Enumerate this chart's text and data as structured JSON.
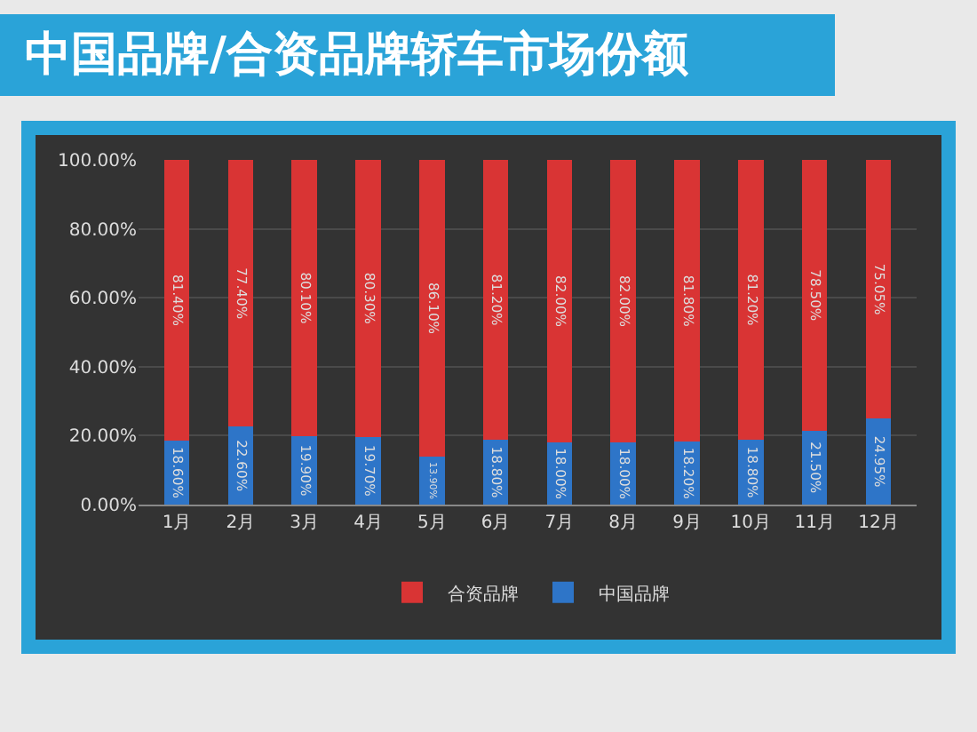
{
  "chart_data": {
    "type": "bar",
    "title": "中国品牌/合资品牌轿车市场份额",
    "stacked": true,
    "categories": [
      "1月",
      "2月",
      "3月",
      "4月",
      "5月",
      "6月",
      "7月",
      "8月",
      "9月",
      "10月",
      "11月",
      "12月"
    ],
    "series": [
      {
        "name": "中国品牌",
        "color": "#2e75c8",
        "values": [
          18.6,
          22.6,
          19.9,
          19.7,
          13.9,
          18.8,
          18.0,
          18.0,
          18.2,
          18.8,
          21.5,
          24.95
        ],
        "value_labels": [
          "18.60%",
          "22.60%",
          "19.90%",
          "19.70%",
          "13.90%",
          "18.80%",
          "18.00%",
          "18.00%",
          "18.20%",
          "18.80%",
          "21.50%",
          "24.95%"
        ]
      },
      {
        "name": "合资品牌",
        "color": "#d93434",
        "values": [
          81.4,
          77.4,
          80.1,
          80.3,
          86.1,
          81.2,
          82.0,
          82.0,
          81.8,
          81.2,
          78.5,
          75.05
        ],
        "value_labels": [
          "81.40%",
          "77.40%",
          "80.10%",
          "80.30%",
          "86.10%",
          "81.20%",
          "82.00%",
          "82.00%",
          "81.80%",
          "81.20%",
          "78.50%",
          "75.05%"
        ]
      }
    ],
    "ylim": [
      0,
      100
    ],
    "yticks": [
      {
        "value": 0,
        "label": "0.00%"
      },
      {
        "value": 20,
        "label": "20.00%"
      },
      {
        "value": 40,
        "label": "40.00%"
      },
      {
        "value": 60,
        "label": "60.00%"
      },
      {
        "value": 80,
        "label": "80.00%"
      },
      {
        "value": 100,
        "label": "100.00%"
      }
    ],
    "grid": "y",
    "legend": "bottom"
  }
}
